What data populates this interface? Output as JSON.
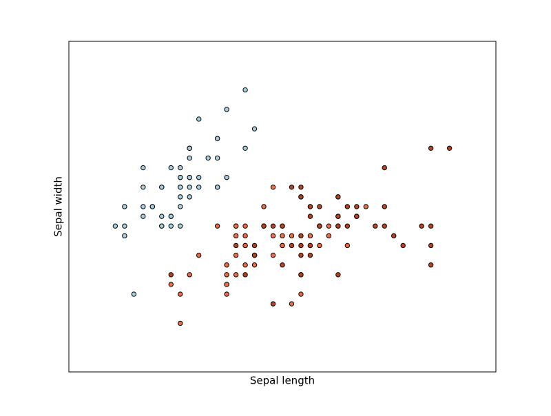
{
  "chart_data": {
    "type": "scatter",
    "xlabel": "Sepal length",
    "ylabel": "Sepal width",
    "xlim": [
      3.8,
      8.4
    ],
    "ylim": [
      1.5,
      4.9
    ],
    "series": [
      {
        "color": "#a6cee3",
        "x": [
          5.1,
          4.9,
          4.7,
          4.6,
          5.0,
          5.4,
          4.6,
          5.0,
          4.4,
          4.9,
          5.4,
          4.8,
          4.8,
          4.3,
          5.8,
          5.7,
          5.4,
          5.1,
          5.7,
          5.1,
          5.4,
          5.1,
          4.6,
          5.1,
          4.8,
          5.0,
          5.0,
          5.2,
          5.2,
          4.7,
          4.8,
          5.4,
          5.2,
          5.5,
          4.9,
          5.0,
          5.5,
          4.9,
          4.4,
          5.1,
          5.0,
          4.5,
          4.4,
          5.0,
          5.1,
          4.8,
          5.1,
          4.6,
          5.3,
          5.0
        ],
        "values": [
          3.5,
          3.0,
          3.2,
          3.1,
          3.6,
          3.9,
          3.4,
          3.4,
          2.9,
          3.1,
          3.7,
          3.4,
          3.0,
          3.0,
          4.0,
          4.4,
          3.9,
          3.5,
          3.8,
          3.8,
          3.4,
          3.7,
          3.6,
          3.3,
          3.4,
          3.0,
          3.4,
          3.5,
          3.4,
          3.2,
          3.1,
          3.4,
          4.1,
          4.2,
          3.1,
          3.2,
          3.5,
          3.6,
          3.0,
          3.4,
          3.5,
          2.3,
          3.2,
          3.5,
          3.8,
          3.0,
          3.8,
          3.2,
          3.7,
          3.3
        ]
      },
      {
        "color": "#ef6b40",
        "x": [
          7.0,
          6.4,
          6.9,
          5.5,
          6.5,
          5.7,
          6.3,
          4.9,
          6.6,
          5.2,
          5.0,
          5.9,
          6.0,
          6.1,
          5.6,
          6.7,
          5.6,
          5.8,
          6.2,
          5.6,
          5.9,
          6.1,
          6.3,
          6.1,
          6.4,
          6.6,
          6.8,
          6.7,
          6.0,
          5.7,
          5.5,
          5.5,
          5.8,
          6.0,
          5.4,
          6.0,
          6.7,
          6.3,
          5.6,
          5.5,
          5.5,
          6.1,
          5.8,
          5.0,
          5.6,
          5.7,
          5.7,
          6.2,
          5.1,
          5.7
        ],
        "values": [
          3.2,
          3.2,
          3.1,
          2.3,
          2.8,
          2.8,
          3.3,
          2.4,
          2.9,
          2.7,
          2.0,
          3.0,
          2.2,
          2.9,
          2.9,
          3.1,
          3.0,
          2.7,
          2.2,
          2.5,
          3.2,
          2.8,
          2.5,
          2.8,
          2.9,
          3.0,
          2.8,
          3.0,
          2.9,
          2.6,
          2.4,
          2.4,
          2.7,
          2.7,
          3.0,
          3.4,
          3.1,
          2.3,
          3.0,
          2.5,
          2.6,
          3.0,
          2.6,
          2.3,
          2.7,
          3.0,
          2.9,
          2.9,
          2.5,
          2.8
        ]
      },
      {
        "color": "#b5441f",
        "x": [
          6.3,
          5.8,
          7.1,
          6.3,
          6.5,
          7.6,
          4.9,
          7.3,
          6.7,
          7.2,
          6.5,
          6.4,
          6.8,
          5.7,
          5.8,
          6.4,
          6.5,
          7.7,
          7.7,
          6.0,
          6.9,
          5.6,
          7.7,
          6.3,
          6.7,
          7.2,
          6.2,
          6.1,
          6.4,
          7.2,
          7.4,
          7.9,
          6.4,
          6.3,
          6.1,
          7.7,
          6.3,
          6.4,
          6.0,
          6.9,
          6.7,
          6.9,
          5.8,
          6.8,
          6.7,
          6.7,
          6.3,
          6.5,
          6.2,
          5.9
        ],
        "values": [
          3.3,
          2.7,
          3.0,
          2.9,
          3.0,
          3.0,
          2.5,
          2.9,
          2.5,
          3.6,
          3.2,
          2.7,
          3.0,
          2.5,
          2.8,
          3.2,
          3.0,
          3.8,
          2.6,
          2.2,
          3.2,
          2.8,
          2.8,
          2.7,
          3.3,
          3.2,
          2.8,
          3.0,
          2.8,
          3.0,
          2.8,
          3.8,
          2.8,
          2.8,
          2.6,
          3.0,
          3.4,
          3.1,
          3.0,
          3.1,
          3.1,
          3.1,
          2.7,
          3.2,
          3.3,
          3.0,
          2.5,
          3.0,
          3.4,
          3.0
        ]
      }
    ]
  }
}
